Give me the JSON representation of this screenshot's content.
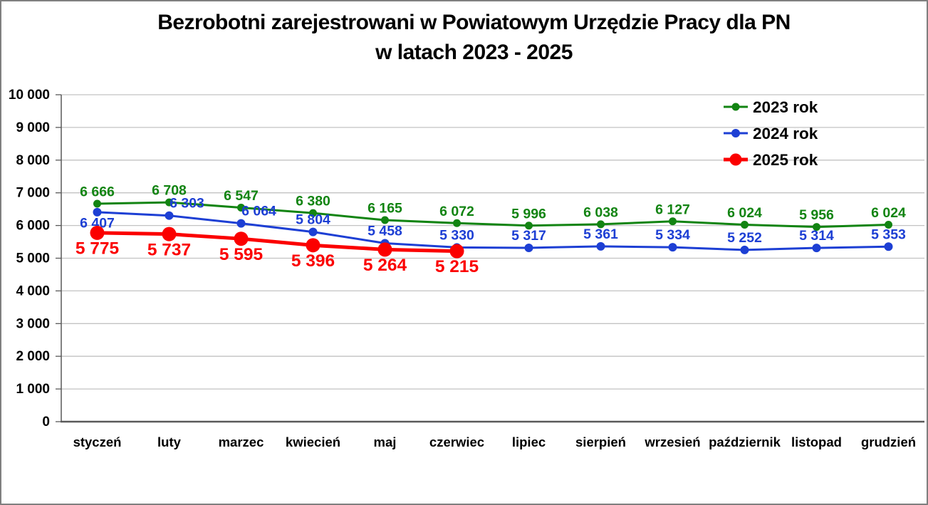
{
  "title": {
    "line1": "Bezrobotni zarejestrowani w Powiatowym Urzędzie Pracy dla PN",
    "line2": "w latach 2023 - 2025"
  },
  "legend": {
    "items": [
      {
        "label": "2023 rok"
      },
      {
        "label": "2024 rok"
      },
      {
        "label": "2025 rok"
      }
    ]
  },
  "chart_data": {
    "type": "line",
    "title": "Bezrobotni zarejestrowani w Powiatowym Urzędzie Pracy dla PN w latach 2023 - 2025",
    "categories": [
      "styczeń",
      "luty",
      "marzec",
      "kwiecień",
      "maj",
      "czerwiec",
      "lipiec",
      "sierpień",
      "wrzesień",
      "październik",
      "listopad",
      "grudzień"
    ],
    "series": [
      {
        "name": "2023 rok",
        "color": "#128412",
        "values": [
          6666,
          6708,
          6547,
          6380,
          6165,
          6072,
          5996,
          6038,
          6127,
          6024,
          5956,
          6024
        ],
        "marker_radius": 5.5,
        "line_width": 3,
        "label_position": "above"
      },
      {
        "name": "2024 rok",
        "color": "#1d3fd4",
        "values": [
          6407,
          6303,
          6064,
          5804,
          5458,
          5330,
          5317,
          5361,
          5334,
          5252,
          5314,
          5353
        ],
        "marker_radius": 6,
        "line_width": 3,
        "label_position": "above",
        "label_below_indices": [
          0
        ],
        "label_dx": [
          0,
          25,
          25,
          0,
          0,
          0,
          0,
          0,
          0,
          0,
          0,
          0
        ]
      },
      {
        "name": "2025 rok",
        "color": "#fb0000",
        "values": [
          5775,
          5737,
          5595,
          5396,
          5264,
          5215
        ],
        "marker_radius": 10,
        "line_width": 5,
        "label_position": "below"
      }
    ],
    "xlabel": "",
    "ylabel": "",
    "ylim": [
      0,
      10000
    ],
    "ytick_step": 1000,
    "y_tick_labels": [
      "0",
      "1 000",
      "2 000",
      "3 000",
      "4 000",
      "5 000",
      "6 000",
      "7 000",
      "8 000",
      "9 000",
      "10 000"
    ],
    "grid": true,
    "legend_position": "top-right"
  },
  "colors": {
    "grid": "#c3c3c3",
    "axis": "#595959",
    "text": "#000000",
    "series_2023": "#128412",
    "series_2024": "#1d3fd4",
    "series_2025": "#fb0000",
    "border": "#7f7f7f",
    "background": "#ffffff"
  }
}
